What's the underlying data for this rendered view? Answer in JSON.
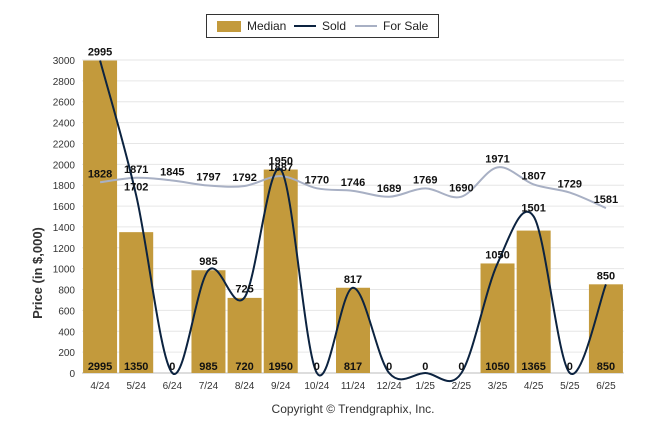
{
  "chart_data": {
    "type": "bar",
    "categories": [
      "4/24",
      "5/24",
      "6/24",
      "7/24",
      "8/24",
      "9/24",
      "10/24",
      "11/24",
      "12/24",
      "1/25",
      "2/25",
      "3/25",
      "4/25",
      "5/25",
      "6/25"
    ],
    "series": [
      {
        "name": "Median",
        "kind": "bar",
        "values": [
          2995,
          1350,
          0,
          985,
          720,
          1950,
          0,
          817,
          0,
          0,
          0,
          1050,
          1365,
          0,
          850
        ]
      },
      {
        "name": "Sold",
        "kind": "line",
        "values": [
          2995,
          1702,
          0,
          985,
          725,
          1950,
          0,
          817,
          0,
          0,
          0,
          1050,
          1501,
          0,
          850
        ]
      },
      {
        "name": "For Sale",
        "kind": "line",
        "values": [
          1828,
          1871,
          1845,
          1797,
          1792,
          1887,
          1770,
          1746,
          1689,
          1769,
          1690,
          1971,
          1807,
          1729,
          1581
        ]
      }
    ],
    "ylabel": "Price (in $,000)",
    "xlabel": "",
    "ylim": [
      0,
      3000
    ],
    "yticks": [
      0,
      200,
      400,
      600,
      800,
      1000,
      1200,
      1400,
      1600,
      1800,
      2000,
      2200,
      2400,
      2600,
      2800,
      3000
    ],
    "grid": true,
    "legend_position": "top-center",
    "colors": {
      "median": "#c39a3c",
      "sold": "#0c2340",
      "forsale": "#a8b0c4",
      "grid": "#e6e6e6"
    }
  },
  "footer": {
    "copyright": "Copyright © Trendgraphix, Inc."
  }
}
